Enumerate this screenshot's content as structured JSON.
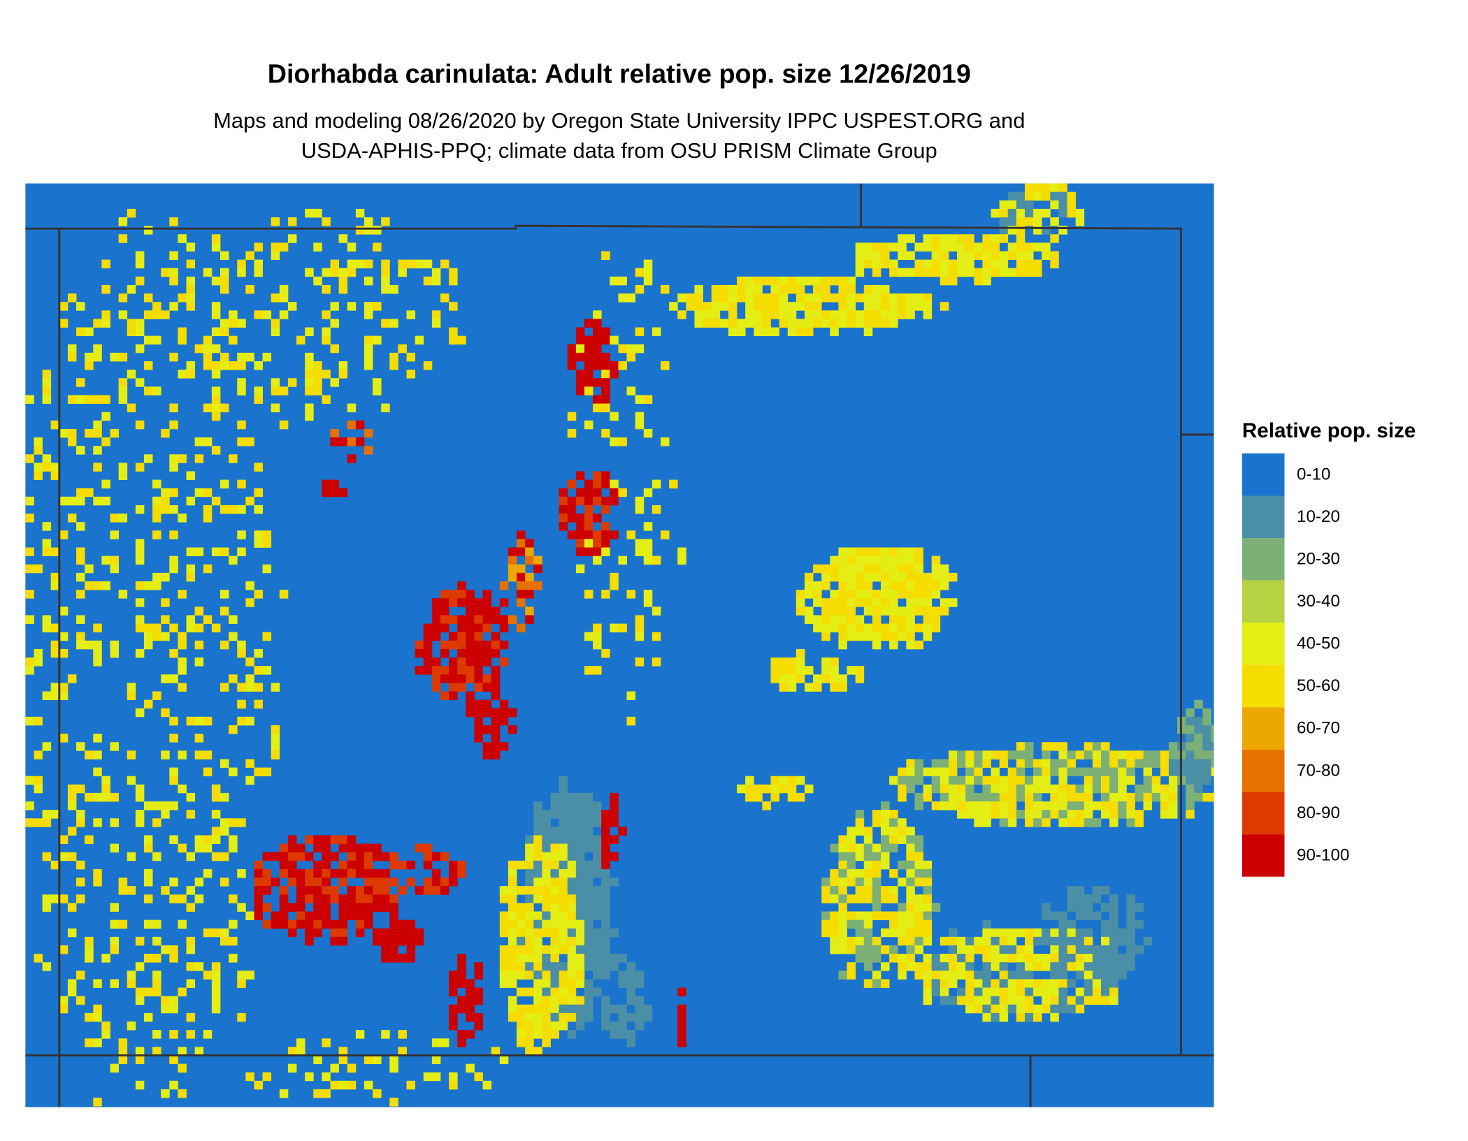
{
  "title": "Diorhabda carinulata: Adult relative pop. size 12/26/2019",
  "subtitle": [
    "Maps and modeling 08/26/2020 by Oregon State University IPPC USPEST.ORG and",
    "USDA-APHIS-PPQ; climate data from OSU PRISM Climate Group"
  ],
  "legend": {
    "title": "Relative pop. size",
    "items": [
      {
        "label": "0-10",
        "color": "#1a73cc"
      },
      {
        "label": "10-20",
        "color": "#4a8fa6"
      },
      {
        "label": "20-30",
        "color": "#7cb077"
      },
      {
        "label": "30-40",
        "color": "#b6d142"
      },
      {
        "label": "40-50",
        "color": "#e4ee14"
      },
      {
        "label": "50-60",
        "color": "#f5dd00"
      },
      {
        "label": "60-70",
        "color": "#eda800"
      },
      {
        "label": "70-80",
        "color": "#e57200"
      },
      {
        "label": "80-90",
        "color": "#dd3a00"
      },
      {
        "label": "90-100",
        "color": "#cc0000"
      }
    ]
  }
}
